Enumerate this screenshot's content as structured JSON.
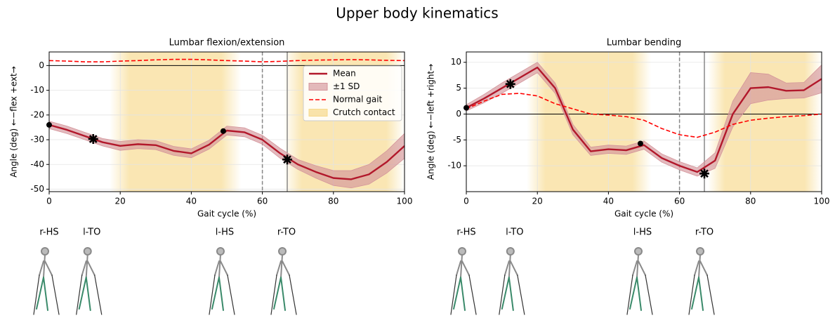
{
  "title": "Upper body kinematics",
  "chart_data": [
    {
      "type": "line",
      "title": "Lumbar flexion/extension",
      "xlabel": "Gait cycle (%)",
      "ylabel": "Angle (deg) ←−flex +ext→",
      "x": [
        0,
        5,
        10,
        15,
        20,
        25,
        30,
        35,
        40,
        45,
        50,
        55,
        60,
        65,
        70,
        75,
        80,
        85,
        90,
        95,
        100
      ],
      "xlim": [
        0,
        100
      ],
      "xticks": [
        0,
        20,
        40,
        60,
        80,
        100
      ],
      "ylim": [
        -51,
        5.5
      ],
      "yticks": [
        -50,
        -40,
        -30,
        -20,
        -10,
        0
      ],
      "grid": true,
      "legend": "upper right",
      "series": [
        {
          "name": "Mean",
          "style": "line",
          "color": "#b2182b",
          "values": [
            -24,
            -26,
            -28.5,
            -31,
            -32.5,
            -31.8,
            -32.2,
            -34.5,
            -35.5,
            -32,
            -26.3,
            -27,
            -30,
            -35.5,
            -40,
            -43,
            -45.5,
            -46,
            -44,
            -39,
            -32.5
          ]
        },
        {
          "name": "±1 SD",
          "style": "band",
          "color": "#d4959b",
          "values": [
            1.5,
            1.5,
            1.5,
            1.5,
            1.8,
            1.8,
            1.8,
            1.8,
            1.8,
            1.8,
            1.8,
            1.8,
            1.8,
            2,
            2,
            2.5,
            3,
            3.5,
            4,
            4.5,
            5
          ]
        },
        {
          "name": "Normal gait",
          "style": "dashed",
          "color": "#ff0000",
          "values": [
            2,
            1.8,
            1.5,
            1.5,
            1.8,
            2,
            2.3,
            2.5,
            2.5,
            2.3,
            2,
            1.8,
            1.5,
            1.7,
            2,
            2.2,
            2.3,
            2.4,
            2.3,
            2.1,
            2
          ]
        }
      ],
      "shading": {
        "name": "Crutch contact",
        "color": "#f7d98a",
        "ranges": [
          [
            17,
            54
          ],
          [
            66,
            100
          ]
        ]
      },
      "vlines": [
        {
          "x": 60,
          "style": "dashed"
        },
        {
          "x": 67,
          "style": "solid"
        }
      ],
      "markers": [
        {
          "x": 0,
          "y": -24,
          "shape": "dot"
        },
        {
          "x": 12.4,
          "y": -29.7,
          "shape": "star"
        },
        {
          "x": 49,
          "y": -26.5,
          "shape": "dot"
        },
        {
          "x": 67,
          "y": -38,
          "shape": "star"
        }
      ],
      "events": [
        {
          "label": "r-HS",
          "x": 0
        },
        {
          "label": "l-TO",
          "x": 12
        },
        {
          "label": "l-HS",
          "x": 49.4
        },
        {
          "label": "r-TO",
          "x": 66.8
        }
      ]
    },
    {
      "type": "line",
      "title": "Lumbar bending",
      "xlabel": "Gait cycle (%)",
      "ylabel": "Angle (deg) ←−left +right→",
      "x": [
        0,
        5,
        10,
        15,
        20,
        25,
        30,
        35,
        40,
        45,
        50,
        55,
        60,
        65,
        70,
        75,
        80,
        85,
        90,
        95,
        100
      ],
      "xlim": [
        0,
        100
      ],
      "xticks": [
        0,
        20,
        40,
        60,
        80,
        100
      ],
      "ylim": [
        -15,
        12
      ],
      "yticks": [
        -10,
        -5,
        0,
        5,
        10
      ],
      "grid": true,
      "series": [
        {
          "style": "line",
          "color": "#b2182b",
          "values": [
            1.2,
            3,
            5,
            7,
            9,
            5,
            -3,
            -7.2,
            -6.8,
            -7,
            -6,
            -8.5,
            -10,
            -11.2,
            -9,
            0,
            5,
            5.2,
            4.5,
            4.6,
            6.8
          ]
        },
        {
          "style": "band",
          "color": "#d4959b",
          "values": [
            0.6,
            0.8,
            1,
            1,
            1,
            1,
            1,
            0.8,
            0.8,
            0.8,
            0.8,
            0.8,
            0.8,
            0.8,
            1.5,
            2.5,
            3,
            2.5,
            1.5,
            1.5,
            2.7
          ]
        },
        {
          "style": "dashed",
          "color": "#ff0000",
          "values": [
            1,
            2.5,
            3.8,
            4,
            3.5,
            2,
            1,
            0,
            -0.2,
            -0.5,
            -1.2,
            -2.8,
            -4,
            -4.5,
            -3.5,
            -2,
            -1.2,
            -0.8,
            -0.5,
            -0.3,
            0
          ]
        }
      ],
      "shading": {
        "color": "#f7d98a",
        "ranges": [
          [
            17,
            52
          ],
          [
            68,
            100
          ]
        ]
      },
      "vlines": [
        {
          "x": 60,
          "style": "dashed"
        },
        {
          "x": 67,
          "style": "solid"
        }
      ],
      "markers": [
        {
          "x": 0,
          "y": 1.2,
          "shape": "dot"
        },
        {
          "x": 12.4,
          "y": 5.8,
          "shape": "star"
        },
        {
          "x": 49,
          "y": -5.7,
          "shape": "dot"
        },
        {
          "x": 67,
          "y": -11.5,
          "shape": "star"
        }
      ],
      "events": [
        {
          "label": "r-HS",
          "x": 0
        },
        {
          "label": "l-TO",
          "x": 13.6
        },
        {
          "label": "l-HS",
          "x": 49.6
        },
        {
          "label": "r-TO",
          "x": 67
        }
      ]
    }
  ]
}
